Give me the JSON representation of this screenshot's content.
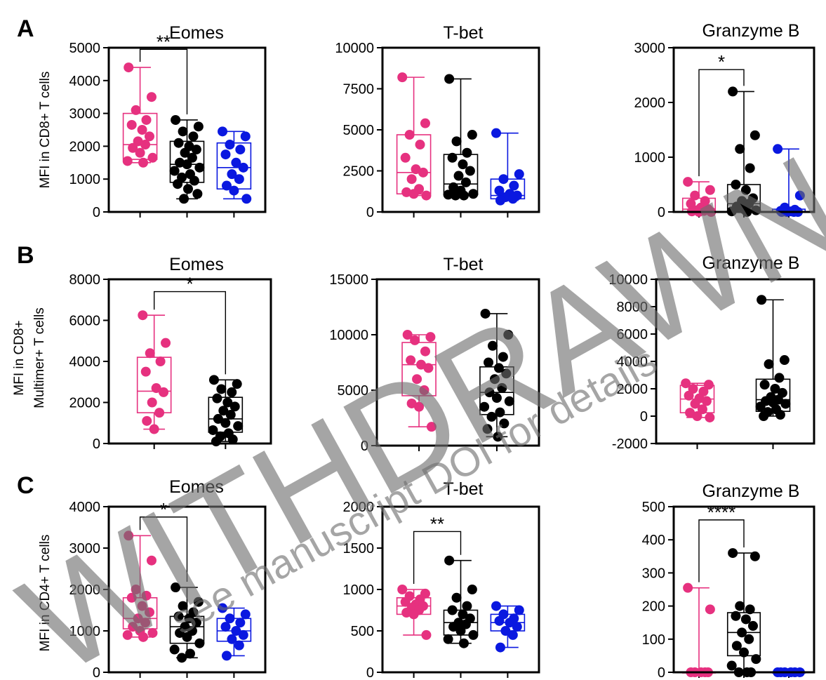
{
  "colors": {
    "pink": "#e6317f",
    "black": "#000000",
    "blue": "#0a18e0"
  },
  "watermark": {
    "main": "WITHDRAWN",
    "sub": "see manuscript DOI for details"
  },
  "panels": [
    {
      "letter": "A",
      "ylabel_lines": [
        "MFI in CD8+ T cells"
      ]
    },
    {
      "letter": "B",
      "ylabel_lines": [
        "MFI in CD8+",
        "Multimer+ T cells"
      ]
    },
    {
      "letter": "C",
      "ylabel_lines": [
        "MFI in CD4+ T cells"
      ]
    }
  ],
  "chart_data": [
    {
      "type": "box",
      "panel": "A",
      "title": "Eomes",
      "ylim": [
        0,
        5000
      ],
      "yticks": [
        0,
        1000,
        2000,
        3000,
        4000,
        5000
      ],
      "series": [
        {
          "color": "pink",
          "box": {
            "min": 1500,
            "q1": 1600,
            "median": 2050,
            "q3": 3000,
            "max": 4400
          },
          "points": [
            4400,
            3500,
            3100,
            2800,
            2650,
            2500,
            2300,
            2150,
            2050,
            1950,
            1800,
            1650,
            1550,
            1500
          ]
        },
        {
          "color": "black",
          "box": {
            "min": 400,
            "q1": 900,
            "median": 1450,
            "q3": 2150,
            "max": 2800
          },
          "points": [
            2800,
            2600,
            2450,
            2300,
            2100,
            2000,
            1900,
            1800,
            1650,
            1500,
            1450,
            1350,
            1250,
            1150,
            1050,
            950,
            850,
            700,
            550,
            400
          ]
        },
        {
          "color": "blue",
          "box": {
            "min": 400,
            "q1": 700,
            "median": 1350,
            "q3": 2100,
            "max": 2450
          },
          "points": [
            2450,
            2300,
            2050,
            1900,
            1750,
            1500,
            1350,
            1150,
            1000,
            800,
            650,
            400
          ]
        }
      ],
      "annotations": [
        {
          "text": "**",
          "from": 0,
          "to": 1,
          "y": 4950
        }
      ]
    },
    {
      "type": "box",
      "panel": "A",
      "title": "T-bet",
      "ylim": [
        0,
        10000
      ],
      "yticks": [
        0,
        2500,
        5000,
        7500,
        10000
      ],
      "series": [
        {
          "color": "pink",
          "box": {
            "min": 1000,
            "q1": 1100,
            "median": 2400,
            "q3": 4700,
            "max": 8200
          },
          "points": [
            8200,
            5400,
            4700,
            4100,
            3300,
            2600,
            2400,
            2000,
            1400,
            1200,
            1100,
            1000
          ]
        },
        {
          "color": "black",
          "box": {
            "min": 1000,
            "q1": 1050,
            "median": 1700,
            "q3": 3500,
            "max": 8100
          },
          "points": [
            8100,
            4700,
            4300,
            3600,
            3300,
            2900,
            2500,
            2200,
            1800,
            1500,
            1300,
            1100,
            1050,
            1000,
            1000
          ]
        },
        {
          "color": "blue",
          "box": {
            "min": 700,
            "q1": 800,
            "median": 1000,
            "q3": 2000,
            "max": 4800
          },
          "points": [
            4800,
            2300,
            2000,
            1600,
            1300,
            1100,
            1000,
            900,
            800,
            700
          ]
        }
      ],
      "annotations": []
    },
    {
      "type": "box",
      "panel": "A",
      "title": "Granzyme B",
      "ylim": [
        0,
        3000
      ],
      "yticks": [
        0,
        1000,
        2000,
        3000
      ],
      "series": [
        {
          "color": "pink",
          "box": {
            "min": 0,
            "q1": 0,
            "median": 50,
            "q3": 250,
            "max": 550
          },
          "points": [
            550,
            400,
            300,
            200,
            150,
            80,
            50,
            30,
            20,
            10,
            0,
            0
          ]
        },
        {
          "color": "black",
          "box": {
            "min": 0,
            "q1": 50,
            "median": 150,
            "q3": 500,
            "max": 2200
          },
          "points": [
            2200,
            1400,
            1150,
            800,
            500,
            400,
            250,
            200,
            150,
            100,
            50,
            30,
            10,
            0
          ]
        },
        {
          "color": "blue",
          "box": {
            "min": 0,
            "q1": 0,
            "median": 0,
            "q3": 50,
            "max": 1150
          },
          "points": [
            1150,
            300,
            80,
            40,
            20,
            10,
            0,
            0,
            0,
            0
          ]
        }
      ],
      "annotations": [
        {
          "text": "*",
          "from": 0,
          "to": 1,
          "y": 2600
        }
      ]
    },
    {
      "type": "box",
      "panel": "B",
      "title": "Eomes",
      "ylim": [
        0,
        8000
      ],
      "yticks": [
        0,
        2000,
        4000,
        6000,
        8000
      ],
      "series": [
        {
          "color": "pink",
          "box": {
            "min": 700,
            "q1": 1500,
            "median": 2550,
            "q3": 4200,
            "max": 6250
          },
          "points": [
            6250,
            4900,
            4400,
            4000,
            3500,
            2700,
            2500,
            2000,
            1500,
            1100,
            700
          ]
        },
        {
          "color": "black",
          "box": {
            "min": 100,
            "q1": 550,
            "median": 1200,
            "q3": 2250,
            "max": 3100
          },
          "points": [
            3100,
            2900,
            2650,
            2500,
            2200,
            2000,
            1800,
            1600,
            1400,
            1200,
            1000,
            850,
            650,
            500,
            350,
            200,
            100
          ]
        }
      ],
      "annotations": [
        {
          "text": "*",
          "from": 0,
          "to": 1,
          "y": 7400
        }
      ]
    },
    {
      "type": "box",
      "panel": "B",
      "title": "T-bet",
      "ylim": [
        0,
        15000
      ],
      "yticks": [
        0,
        5000,
        10000,
        15000
      ],
      "series": [
        {
          "color": "pink",
          "box": {
            "min": 1700,
            "q1": 4500,
            "median": 7300,
            "q3": 9300,
            "max": 10000
          },
          "points": [
            10000,
            9800,
            9500,
            8500,
            7700,
            7300,
            7000,
            6000,
            5000,
            3800,
            3500,
            1700
          ]
        },
        {
          "color": "black",
          "box": {
            "min": 800,
            "q1": 2800,
            "median": 4800,
            "q3": 7100,
            "max": 11900
          },
          "points": [
            11900,
            10000,
            9000,
            8000,
            7500,
            7000,
            6500,
            6000,
            5200,
            4800,
            4300,
            4000,
            3500,
            3000,
            2600,
            2000,
            1500,
            800
          ]
        }
      ],
      "annotations": []
    },
    {
      "type": "box",
      "panel": "B",
      "title": "Granzyme B",
      "ylim": [
        -2000,
        10000
      ],
      "yticks": [
        -2000,
        0,
        2000,
        4000,
        6000,
        8000,
        10000
      ],
      "series": [
        {
          "color": "pink",
          "box": {
            "min": -100,
            "q1": 250,
            "median": 1250,
            "q3": 2250,
            "max": 2400
          },
          "points": [
            2400,
            2300,
            2000,
            1800,
            1500,
            1300,
            1100,
            900,
            500,
            250,
            0,
            -100
          ]
        },
        {
          "color": "black",
          "box": {
            "min": 0,
            "q1": 350,
            "median": 1200,
            "q3": 2700,
            "max": 8500
          },
          "points": [
            8500,
            4100,
            3800,
            2800,
            2300,
            2000,
            1700,
            1400,
            1200,
            1100,
            1000,
            900,
            700,
            500,
            300,
            100,
            0
          ]
        }
      ],
      "annotations": []
    },
    {
      "type": "box",
      "panel": "C",
      "title": "Eomes",
      "ylim": [
        0,
        4000
      ],
      "yticks": [
        0,
        1000,
        2000,
        3000,
        4000
      ],
      "series": [
        {
          "color": "pink",
          "box": {
            "min": 850,
            "q1": 1050,
            "median": 1300,
            "q3": 1800,
            "max": 3300
          },
          "points": [
            3300,
            2700,
            2000,
            1850,
            1800,
            1600,
            1450,
            1300,
            1200,
            1100,
            1000,
            950,
            900,
            850
          ]
        },
        {
          "color": "black",
          "box": {
            "min": 350,
            "q1": 700,
            "median": 1100,
            "q3": 1350,
            "max": 2050
          },
          "points": [
            2050,
            1700,
            1600,
            1450,
            1350,
            1300,
            1200,
            1100,
            1000,
            950,
            850,
            700,
            550,
            450,
            350
          ]
        },
        {
          "color": "blue",
          "box": {
            "min": 400,
            "q1": 750,
            "median": 1000,
            "q3": 1300,
            "max": 1550
          },
          "points": [
            1550,
            1400,
            1300,
            1200,
            1100,
            1000,
            900,
            800,
            650,
            400
          ]
        }
      ],
      "annotations": [
        {
          "text": "*",
          "from": 0,
          "to": 1,
          "y": 3750
        }
      ]
    },
    {
      "type": "box",
      "panel": "C",
      "title": "T-bet",
      "ylim": [
        0,
        2000
      ],
      "yticks": [
        0,
        500,
        1000,
        1500,
        2000
      ],
      "series": [
        {
          "color": "pink",
          "box": {
            "min": 450,
            "q1": 700,
            "median": 800,
            "q3": 900,
            "max": 1000
          },
          "points": [
            1000,
            950,
            920,
            880,
            850,
            820,
            800,
            780,
            750,
            720,
            700,
            450
          ]
        },
        {
          "color": "black",
          "box": {
            "min": 350,
            "q1": 450,
            "median": 600,
            "q3": 750,
            "max": 1350
          },
          "points": [
            1350,
            1000,
            900,
            800,
            750,
            700,
            650,
            600,
            580,
            550,
            500,
            450,
            400,
            350
          ]
        },
        {
          "color": "blue",
          "box": {
            "min": 300,
            "q1": 500,
            "median": 600,
            "q3": 700,
            "max": 800
          },
          "points": [
            800,
            750,
            700,
            650,
            620,
            600,
            550,
            500,
            450,
            300
          ]
        }
      ],
      "annotations": [
        {
          "text": "**",
          "from": 0,
          "to": 1,
          "y": 1700
        }
      ]
    },
    {
      "type": "box",
      "panel": "C",
      "title": "Granzyme B",
      "ylim": [
        0,
        500
      ],
      "yticks": [
        0,
        100,
        200,
        300,
        400,
        500
      ],
      "series": [
        {
          "color": "pink",
          "box": {
            "min": 0,
            "q1": 0,
            "median": 0,
            "q3": 0,
            "max": 255
          },
          "points": [
            255,
            190,
            0,
            0,
            0,
            0,
            0
          ]
        },
        {
          "color": "black",
          "box": {
            "min": 0,
            "q1": 50,
            "median": 120,
            "q3": 180,
            "max": 360
          },
          "points": [
            360,
            350,
            200,
            190,
            170,
            160,
            140,
            120,
            100,
            80,
            60,
            40,
            20,
            0,
            0,
            0
          ]
        },
        {
          "color": "blue",
          "box": {
            "min": 0,
            "q1": 0,
            "median": 0,
            "q3": 0,
            "max": 0
          },
          "points": [
            0,
            0,
            0,
            0,
            0,
            0
          ]
        }
      ],
      "annotations": [
        {
          "text": "****",
          "from": 0,
          "to": 1,
          "y": 460
        }
      ]
    }
  ]
}
